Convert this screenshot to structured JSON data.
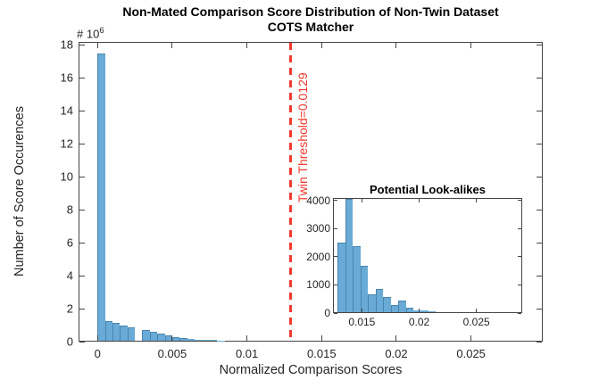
{
  "figure_title": {
    "line1": "Non-Mated Comparison Score Distribution of Non-Twin Dataset",
    "line2": "COTS Matcher"
  },
  "colors": {
    "bar_fill": "#69abd6",
    "bar_edge": "#23557d",
    "threshold_red": "#f23a2e",
    "axis_line": "#454545",
    "tick_text": "#262626"
  },
  "chart_data": [
    {
      "id": "main-histogram",
      "type": "bar",
      "title_lines": [
        "Non-Mated Comparison Score Distribution of Non-Twin Dataset",
        "COTS Matcher"
      ],
      "xlabel": "Normalized Comparison Scores",
      "ylabel": "Number of Score Occurences",
      "y_unit_label": {
        "prefix": "# 10",
        "exp": "6"
      },
      "grid": false,
      "legend": false,
      "xlim": [
        -0.00127,
        0.0298
      ],
      "ylim": [
        0,
        18170000
      ],
      "xticks": {
        "values": [
          0,
          0.005,
          0.01,
          0.015,
          0.02,
          0.025
        ],
        "labels": [
          "0",
          "0.005",
          "0.01",
          "0.015",
          "0.02",
          "0.025"
        ]
      },
      "yticks": {
        "values": [
          0,
          2000000,
          4000000,
          6000000,
          8000000,
          10000000,
          12000000,
          14000000,
          16000000,
          18000000
        ],
        "labels": [
          "0",
          "2",
          "4",
          "6",
          "8",
          "10",
          "12",
          "14",
          "16",
          "18"
        ]
      },
      "bins": {
        "start": 0,
        "width": 0.0005
      },
      "values": [
        17450000,
        1260000,
        1130000,
        1000000,
        880000,
        0,
        720000,
        600000,
        500000,
        380000,
        280000,
        220000,
        170000,
        130000,
        100000,
        90000,
        60000,
        30000
      ],
      "annotation": {
        "type": "vline",
        "x": 0.0129,
        "label": "Twin Threshold=0.0129",
        "style": "dashed",
        "color": "#f23a2e"
      }
    },
    {
      "id": "inset-histogram",
      "type": "bar",
      "title": "Potential Look-alikes",
      "xlabel": "",
      "ylabel": "",
      "grid": false,
      "legend": false,
      "xlim": [
        0.01248,
        0.029
      ],
      "ylim": [
        0,
        4080
      ],
      "xticks": {
        "values": [
          0.015,
          0.02,
          0.025
        ],
        "labels": [
          "0.015",
          "0.02",
          "0.025"
        ]
      },
      "yticks": {
        "values": [
          0,
          1000,
          2000,
          3000,
          4000
        ],
        "labels": [
          "0",
          "1000",
          "2000",
          "3000",
          "4000"
        ]
      },
      "bins": {
        "start": 0.0129,
        "width": 0.00066
      },
      "values": [
        2500,
        4300,
        2370,
        1680,
        650,
        865,
        580,
        285,
        445,
        200,
        100,
        80,
        55,
        30,
        18,
        10,
        6,
        3
      ]
    }
  ]
}
